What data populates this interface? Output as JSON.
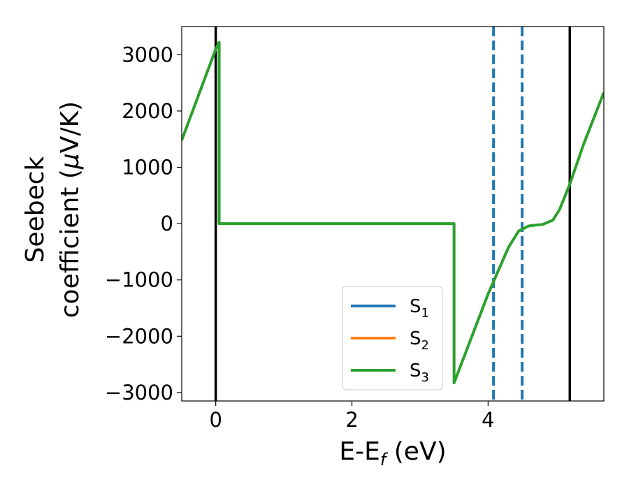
{
  "chart_data": {
    "type": "line",
    "xlabel": {
      "main": "E-E",
      "sub": "f",
      "unit": " (eV)"
    },
    "ylabel": {
      "line1": "Seebeck",
      "line2_pre": "coefficient  (",
      "mu": "μ",
      "line2_post": "V/K)"
    },
    "xlim": [
      -0.5,
      5.7
    ],
    "ylim": [
      -3150,
      3500
    ],
    "x_ticks": [
      0,
      2,
      4
    ],
    "x_tick_labels": [
      "0",
      "2",
      "4"
    ],
    "y_ticks": [
      -3000,
      -2000,
      -1000,
      0,
      1000,
      2000,
      3000
    ],
    "y_tick_labels": [
      "−3000",
      "−2000",
      "−1000",
      "0",
      "1000",
      "2000",
      "3000"
    ],
    "grid": false,
    "legend": {
      "position": "lower-center",
      "entries": [
        {
          "base": "S",
          "sub": "1",
          "color": "#1f77b4"
        },
        {
          "base": "S",
          "sub": "2",
          "color": "#ff7f0e"
        },
        {
          "base": "S",
          "sub": "3",
          "color": "#2ca02c"
        }
      ]
    },
    "vlines": [
      {
        "x": 0,
        "style": "solid",
        "color": "#000000"
      },
      {
        "x": 5.2,
        "style": "solid",
        "color": "#000000"
      },
      {
        "x": 4.08,
        "style": "dashed",
        "color": "#1f77b4"
      },
      {
        "x": 4.5,
        "style": "dashed",
        "color": "#1f77b4"
      }
    ],
    "series": [
      {
        "color": "#2ca02c",
        "points": [
          [
            -0.5,
            1480
          ],
          [
            0.0,
            3100
          ],
          [
            0.05,
            3220
          ],
          [
            0.05,
            0
          ],
          [
            3.5,
            0
          ],
          [
            3.5,
            -2830
          ],
          [
            4.0,
            -1250
          ],
          [
            4.3,
            -420
          ],
          [
            4.45,
            -130
          ],
          [
            4.6,
            -40
          ],
          [
            4.8,
            -15
          ],
          [
            4.95,
            60
          ],
          [
            5.05,
            250
          ],
          [
            5.2,
            700
          ],
          [
            5.4,
            1400
          ],
          [
            5.7,
            2330
          ]
        ]
      }
    ]
  }
}
